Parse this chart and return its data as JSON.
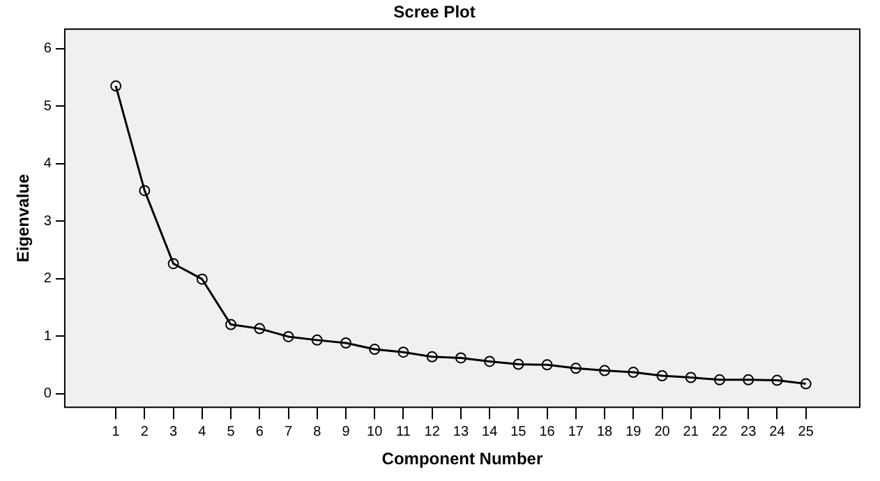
{
  "chart_data": {
    "type": "line",
    "title": "Scree Plot",
    "xlabel": "Component Number",
    "ylabel": "Eigenvalue",
    "x": [
      1,
      2,
      3,
      4,
      5,
      6,
      7,
      8,
      9,
      10,
      11,
      12,
      13,
      14,
      15,
      16,
      17,
      18,
      19,
      20,
      21,
      22,
      23,
      24,
      25
    ],
    "series": [
      {
        "color": "#000000",
        "values": [
          5.35,
          3.53,
          2.26,
          1.99,
          1.2,
          1.13,
          0.99,
          0.93,
          0.88,
          0.77,
          0.72,
          0.64,
          0.62,
          0.56,
          0.51,
          0.5,
          0.44,
          0.4,
          0.37,
          0.31,
          0.28,
          0.24,
          0.24,
          0.23,
          0.17
        ]
      }
    ],
    "xlim": [
      -0.8,
      26.9
    ],
    "xticks": [
      1,
      2,
      3,
      4,
      5,
      6,
      7,
      8,
      9,
      10,
      11,
      12,
      13,
      14,
      15,
      16,
      17,
      18,
      19,
      20,
      21,
      22,
      23,
      24,
      25
    ],
    "ylim": [
      -0.25,
      6.35
    ],
    "yticks": [
      0,
      1,
      2,
      3,
      4,
      5,
      6
    ],
    "grid": false,
    "legend": false,
    "marker": "circle",
    "line_style": "solid"
  }
}
